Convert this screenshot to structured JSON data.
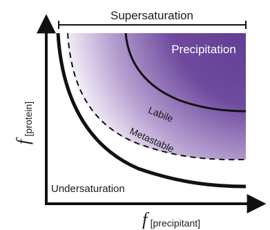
{
  "diagram": {
    "bracket_label": "Supersaturation",
    "regions": {
      "precipitation": "Precipitation",
      "labile": "Labile",
      "metastable": "Metastable",
      "undersaturation": "Undersaturation"
    },
    "y_axis": {
      "symbol": "f",
      "subscript": "[protein]"
    },
    "x_axis": {
      "symbol": "f",
      "subscript": "[precipitant]"
    },
    "colors": {
      "gradient_dark": "#6f4a9e",
      "gradient_light": "#ffffff",
      "precip_label": "#ffffff",
      "curves": "#111111"
    }
  }
}
